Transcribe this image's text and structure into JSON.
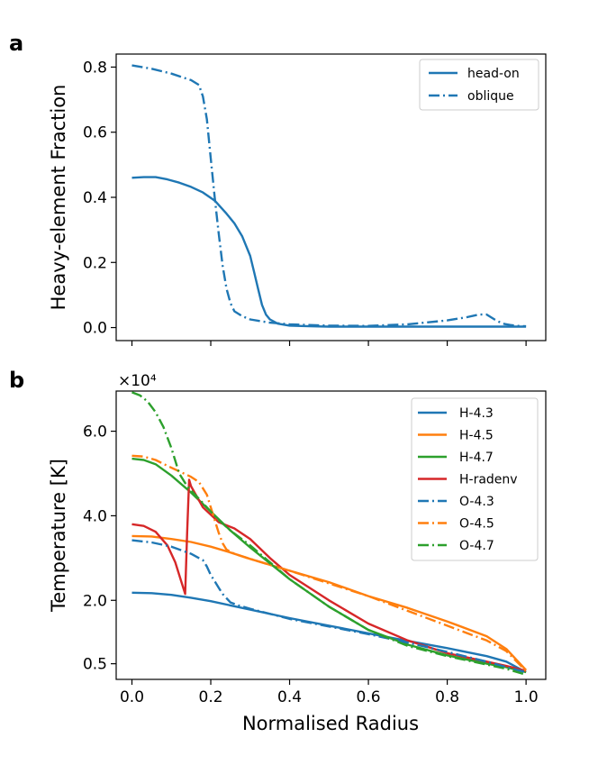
{
  "chart_data": [
    {
      "panel": "a",
      "type": "line",
      "ylabel": "Heavy-element Fraction",
      "xlabel": "",
      "xlim": [
        -0.04,
        1.05
      ],
      "ylim": [
        -0.04,
        0.84
      ],
      "yticks": [
        {
          "value": 0.0,
          "label": "0.0"
        },
        {
          "value": 0.2,
          "label": "0.2"
        },
        {
          "value": 0.4,
          "label": "0.4"
        },
        {
          "value": 0.6,
          "label": "0.6"
        },
        {
          "value": 0.8,
          "label": "0.8"
        }
      ],
      "xticks": [
        0.0,
        0.2,
        0.4,
        0.6,
        0.8,
        1.0
      ],
      "legend_position": "top-right",
      "series": [
        {
          "name": "head-on",
          "color": "#1f77b4",
          "style": "solid",
          "x": [
            0.0,
            0.03,
            0.06,
            0.09,
            0.12,
            0.15,
            0.18,
            0.21,
            0.24,
            0.26,
            0.28,
            0.3,
            0.31,
            0.32,
            0.33,
            0.34,
            0.35,
            0.37,
            0.4,
            0.45,
            0.5,
            0.6,
            0.7,
            0.8,
            0.9,
            0.95,
            1.0
          ],
          "y": [
            0.46,
            0.462,
            0.462,
            0.455,
            0.445,
            0.432,
            0.415,
            0.39,
            0.35,
            0.32,
            0.28,
            0.22,
            0.17,
            0.12,
            0.07,
            0.04,
            0.025,
            0.012,
            0.006,
            0.004,
            0.003,
            0.003,
            0.003,
            0.003,
            0.003,
            0.003,
            0.003
          ]
        },
        {
          "name": "oblique",
          "color": "#1f77b4",
          "style": "dashdot",
          "x": [
            0.0,
            0.05,
            0.1,
            0.15,
            0.17,
            0.18,
            0.19,
            0.2,
            0.21,
            0.22,
            0.23,
            0.24,
            0.25,
            0.26,
            0.28,
            0.3,
            0.35,
            0.4,
            0.45,
            0.5,
            0.6,
            0.7,
            0.8,
            0.85,
            0.88,
            0.9,
            0.92,
            0.94,
            0.96,
            0.98,
            1.0
          ],
          "y": [
            0.805,
            0.795,
            0.78,
            0.76,
            0.745,
            0.71,
            0.64,
            0.52,
            0.4,
            0.29,
            0.19,
            0.12,
            0.075,
            0.05,
            0.035,
            0.025,
            0.015,
            0.01,
            0.008,
            0.006,
            0.005,
            0.01,
            0.022,
            0.032,
            0.04,
            0.04,
            0.025,
            0.012,
            0.008,
            0.005,
            0.004
          ]
        }
      ]
    },
    {
      "panel": "b",
      "type": "line",
      "ylabel": "Temperature [K]",
      "xlabel": "Normalised Radius",
      "multiplier_label": "×10⁴",
      "xlim": [
        -0.04,
        1.05
      ],
      "ylim": [
        0.13,
        6.95
      ],
      "yticks": [
        {
          "value": 0.5,
          "label": "0.5"
        },
        {
          "value": 2.0,
          "label": "2.0"
        },
        {
          "value": 4.0,
          "label": "4.0"
        },
        {
          "value": 6.0,
          "label": "6.0"
        }
      ],
      "xticks": [
        {
          "value": 0.0,
          "label": "0.0"
        },
        {
          "value": 0.2,
          "label": "0.2"
        },
        {
          "value": 0.4,
          "label": "0.4"
        },
        {
          "value": 0.6,
          "label": "0.6"
        },
        {
          "value": 0.8,
          "label": "0.8"
        },
        {
          "value": 1.0,
          "label": "1.0"
        }
      ],
      "legend_position": "top-right",
      "series": [
        {
          "name": "H-4.3",
          "color": "#1f77b4",
          "style": "solid",
          "x": [
            0.0,
            0.05,
            0.1,
            0.15,
            0.2,
            0.25,
            0.3,
            0.4,
            0.5,
            0.6,
            0.7,
            0.8,
            0.9,
            0.95,
            1.0
          ],
          "y": [
            2.18,
            2.17,
            2.13,
            2.06,
            1.98,
            1.88,
            1.78,
            1.58,
            1.4,
            1.22,
            1.04,
            0.87,
            0.68,
            0.55,
            0.3
          ]
        },
        {
          "name": "H-4.5",
          "color": "#ff7f0e",
          "style": "solid",
          "x": [
            0.0,
            0.05,
            0.1,
            0.15,
            0.2,
            0.25,
            0.3,
            0.4,
            0.5,
            0.6,
            0.7,
            0.8,
            0.9,
            0.95,
            1.0
          ],
          "y": [
            3.52,
            3.51,
            3.45,
            3.38,
            3.27,
            3.13,
            2.98,
            2.7,
            2.43,
            2.1,
            1.82,
            1.5,
            1.15,
            0.85,
            0.35
          ]
        },
        {
          "name": "H-4.7",
          "color": "#2ca02c",
          "style": "solid",
          "x": [
            0.0,
            0.03,
            0.06,
            0.1,
            0.15,
            0.2,
            0.25,
            0.3,
            0.4,
            0.5,
            0.6,
            0.7,
            0.8,
            0.9,
            0.95,
            1.0
          ],
          "y": [
            5.35,
            5.32,
            5.22,
            4.95,
            4.55,
            4.1,
            3.65,
            3.25,
            2.5,
            1.85,
            1.3,
            0.95,
            0.7,
            0.5,
            0.42,
            0.3
          ]
        },
        {
          "name": "H-radenv",
          "color": "#d62728",
          "style": "solid",
          "x": [
            0.0,
            0.03,
            0.06,
            0.09,
            0.11,
            0.125,
            0.135,
            0.14,
            0.145,
            0.15,
            0.18,
            0.22,
            0.26,
            0.3,
            0.35,
            0.4,
            0.5,
            0.6,
            0.7,
            0.8,
            0.9,
            0.95,
            1.0
          ],
          "y": [
            3.8,
            3.76,
            3.62,
            3.3,
            2.9,
            2.45,
            2.15,
            3.6,
            4.85,
            4.7,
            4.2,
            3.85,
            3.7,
            3.45,
            3.0,
            2.6,
            2.0,
            1.45,
            1.05,
            0.75,
            0.55,
            0.45,
            0.33
          ]
        },
        {
          "name": "O-4.3",
          "color": "#1f77b4",
          "style": "dashdot",
          "x": [
            0.0,
            0.05,
            0.1,
            0.15,
            0.18,
            0.19,
            0.2,
            0.21,
            0.22,
            0.23,
            0.24,
            0.25,
            0.27,
            0.3,
            0.4,
            0.5,
            0.6,
            0.7,
            0.8,
            0.9,
            0.95,
            1.0
          ],
          "y": [
            3.42,
            3.37,
            3.27,
            3.1,
            2.95,
            2.8,
            2.6,
            2.45,
            2.3,
            2.15,
            2.05,
            1.95,
            1.88,
            1.8,
            1.56,
            1.38,
            1.2,
            1.0,
            0.78,
            0.55,
            0.42,
            0.3
          ]
        },
        {
          "name": "O-4.5",
          "color": "#ff7f0e",
          "style": "dashdot",
          "x": [
            0.0,
            0.03,
            0.06,
            0.09,
            0.12,
            0.15,
            0.17,
            0.19,
            0.2,
            0.21,
            0.22,
            0.23,
            0.24,
            0.26,
            0.3,
            0.4,
            0.5,
            0.6,
            0.7,
            0.8,
            0.9,
            0.95,
            1.0
          ],
          "y": [
            5.42,
            5.4,
            5.32,
            5.18,
            5.05,
            4.92,
            4.8,
            4.5,
            4.2,
            3.9,
            3.6,
            3.35,
            3.2,
            3.1,
            2.98,
            2.7,
            2.4,
            2.1,
            1.75,
            1.4,
            1.05,
            0.8,
            0.33
          ]
        },
        {
          "name": "O-4.7",
          "color": "#2ca02c",
          "style": "dashdot",
          "x": [
            0.0,
            0.02,
            0.04,
            0.06,
            0.08,
            0.1,
            0.12,
            0.14,
            0.16,
            0.18,
            0.2,
            0.22,
            0.25,
            0.3,
            0.35,
            0.4,
            0.5,
            0.6,
            0.7,
            0.8,
            0.9,
            0.95,
            1.0
          ],
          "y": [
            6.92,
            6.85,
            6.7,
            6.45,
            6.1,
            5.6,
            5.0,
            4.7,
            4.5,
            4.3,
            4.1,
            3.9,
            3.65,
            3.3,
            2.9,
            2.5,
            1.85,
            1.3,
            0.92,
            0.68,
            0.48,
            0.38,
            0.24
          ]
        }
      ]
    }
  ],
  "panel_letters": {
    "a": "a",
    "b": "b"
  }
}
